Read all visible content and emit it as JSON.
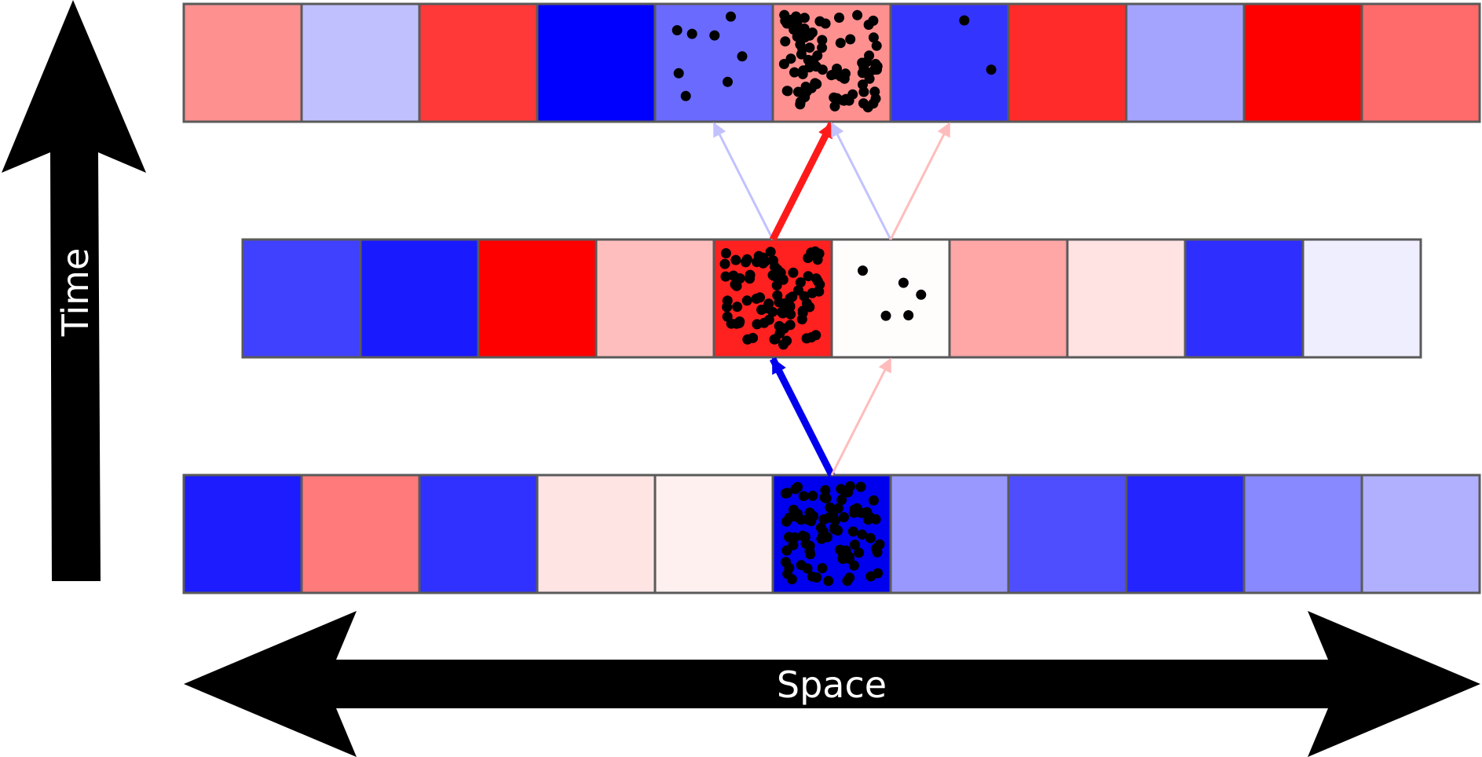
{
  "labels": {
    "time": "Time",
    "space": "Space"
  },
  "colors": {
    "grid_stroke": "#5a5a5a",
    "axis_arrow": "#000000",
    "particle": "#000000",
    "arrow_strong_red": "#ff1a1a",
    "arrow_strong_blue": "#0000ee",
    "arrow_weak_red": "#ffbcbc",
    "arrow_weak_blue": "#c2c2ff"
  },
  "rows": [
    {
      "name": "row-top",
      "cells": [
        {
          "color": "#ff9090",
          "particles": 0
        },
        {
          "color": "#c0c0ff",
          "particles": 0
        },
        {
          "color": "#ff3838",
          "particles": 0
        },
        {
          "color": "#0000ff",
          "particles": 0
        },
        {
          "color": "#6a6aff",
          "particles": 8
        },
        {
          "color": "#ff9090",
          "particles": 90
        },
        {
          "color": "#3434ff",
          "particles": 2
        },
        {
          "color": "#ff2a2a",
          "particles": 0
        },
        {
          "color": "#a4a4ff",
          "particles": 0
        },
        {
          "color": "#ff0000",
          "particles": 0
        },
        {
          "color": "#ff6a6a",
          "particles": 0
        }
      ]
    },
    {
      "name": "row-middle",
      "cells": [
        {
          "color": "#4040ff",
          "particles": 0
        },
        {
          "color": "#1a1aff",
          "particles": 0
        },
        {
          "color": "#ff0000",
          "particles": 0
        },
        {
          "color": "#ffbebe",
          "particles": 0
        },
        {
          "color": "#ff2020",
          "particles": 90
        },
        {
          "color": "#fffcfc",
          "particles": 5
        },
        {
          "color": "#ffa6a6",
          "particles": 0
        },
        {
          "color": "#ffe2e2",
          "particles": 0
        },
        {
          "color": "#2e2eff",
          "particles": 0
        },
        {
          "color": "#eeeeff",
          "particles": 0
        }
      ]
    },
    {
      "name": "row-bottom",
      "cells": [
        {
          "color": "#1c1cff",
          "particles": 0
        },
        {
          "color": "#ff7a7a",
          "particles": 0
        },
        {
          "color": "#3030ff",
          "particles": 0
        },
        {
          "color": "#ffe4e4",
          "particles": 0
        },
        {
          "color": "#fff0f0",
          "particles": 0
        },
        {
          "color": "#0000ee",
          "particles": 90
        },
        {
          "color": "#9898ff",
          "particles": 0
        },
        {
          "color": "#4e4eff",
          "particles": 0
        },
        {
          "color": "#2424ff",
          "particles": 0
        },
        {
          "color": "#8888ff",
          "particles": 0
        },
        {
          "color": "#b0b0ff",
          "particles": 0
        }
      ]
    }
  ],
  "transitions": [
    {
      "name": "transition-bottom-to-middle-strong",
      "from_row": 2,
      "from_cell": 5,
      "to_row": 1,
      "to_cell": 4,
      "strength": "strong",
      "sign": "blue"
    },
    {
      "name": "transition-bottom-to-middle-weak",
      "from_row": 2,
      "from_cell": 5,
      "to_row": 1,
      "to_cell": 5,
      "strength": "weak",
      "sign": "red"
    },
    {
      "name": "transition-middle-to-top-weak-1",
      "from_row": 1,
      "from_cell": 4,
      "to_row": 0,
      "to_cell": 4,
      "strength": "weak",
      "sign": "blue"
    },
    {
      "name": "transition-middle-to-top-strong",
      "from_row": 1,
      "from_cell": 4,
      "to_row": 0,
      "to_cell": 5,
      "strength": "strong",
      "sign": "red"
    },
    {
      "name": "transition-middle-to-top-weak-2",
      "from_row": 1,
      "from_cell": 5,
      "to_row": 0,
      "to_cell": 5,
      "strength": "weak",
      "sign": "blue"
    },
    {
      "name": "transition-middle-to-top-weak-3",
      "from_row": 1,
      "from_cell": 5,
      "to_row": 0,
      "to_cell": 6,
      "strength": "weak",
      "sign": "red"
    }
  ]
}
